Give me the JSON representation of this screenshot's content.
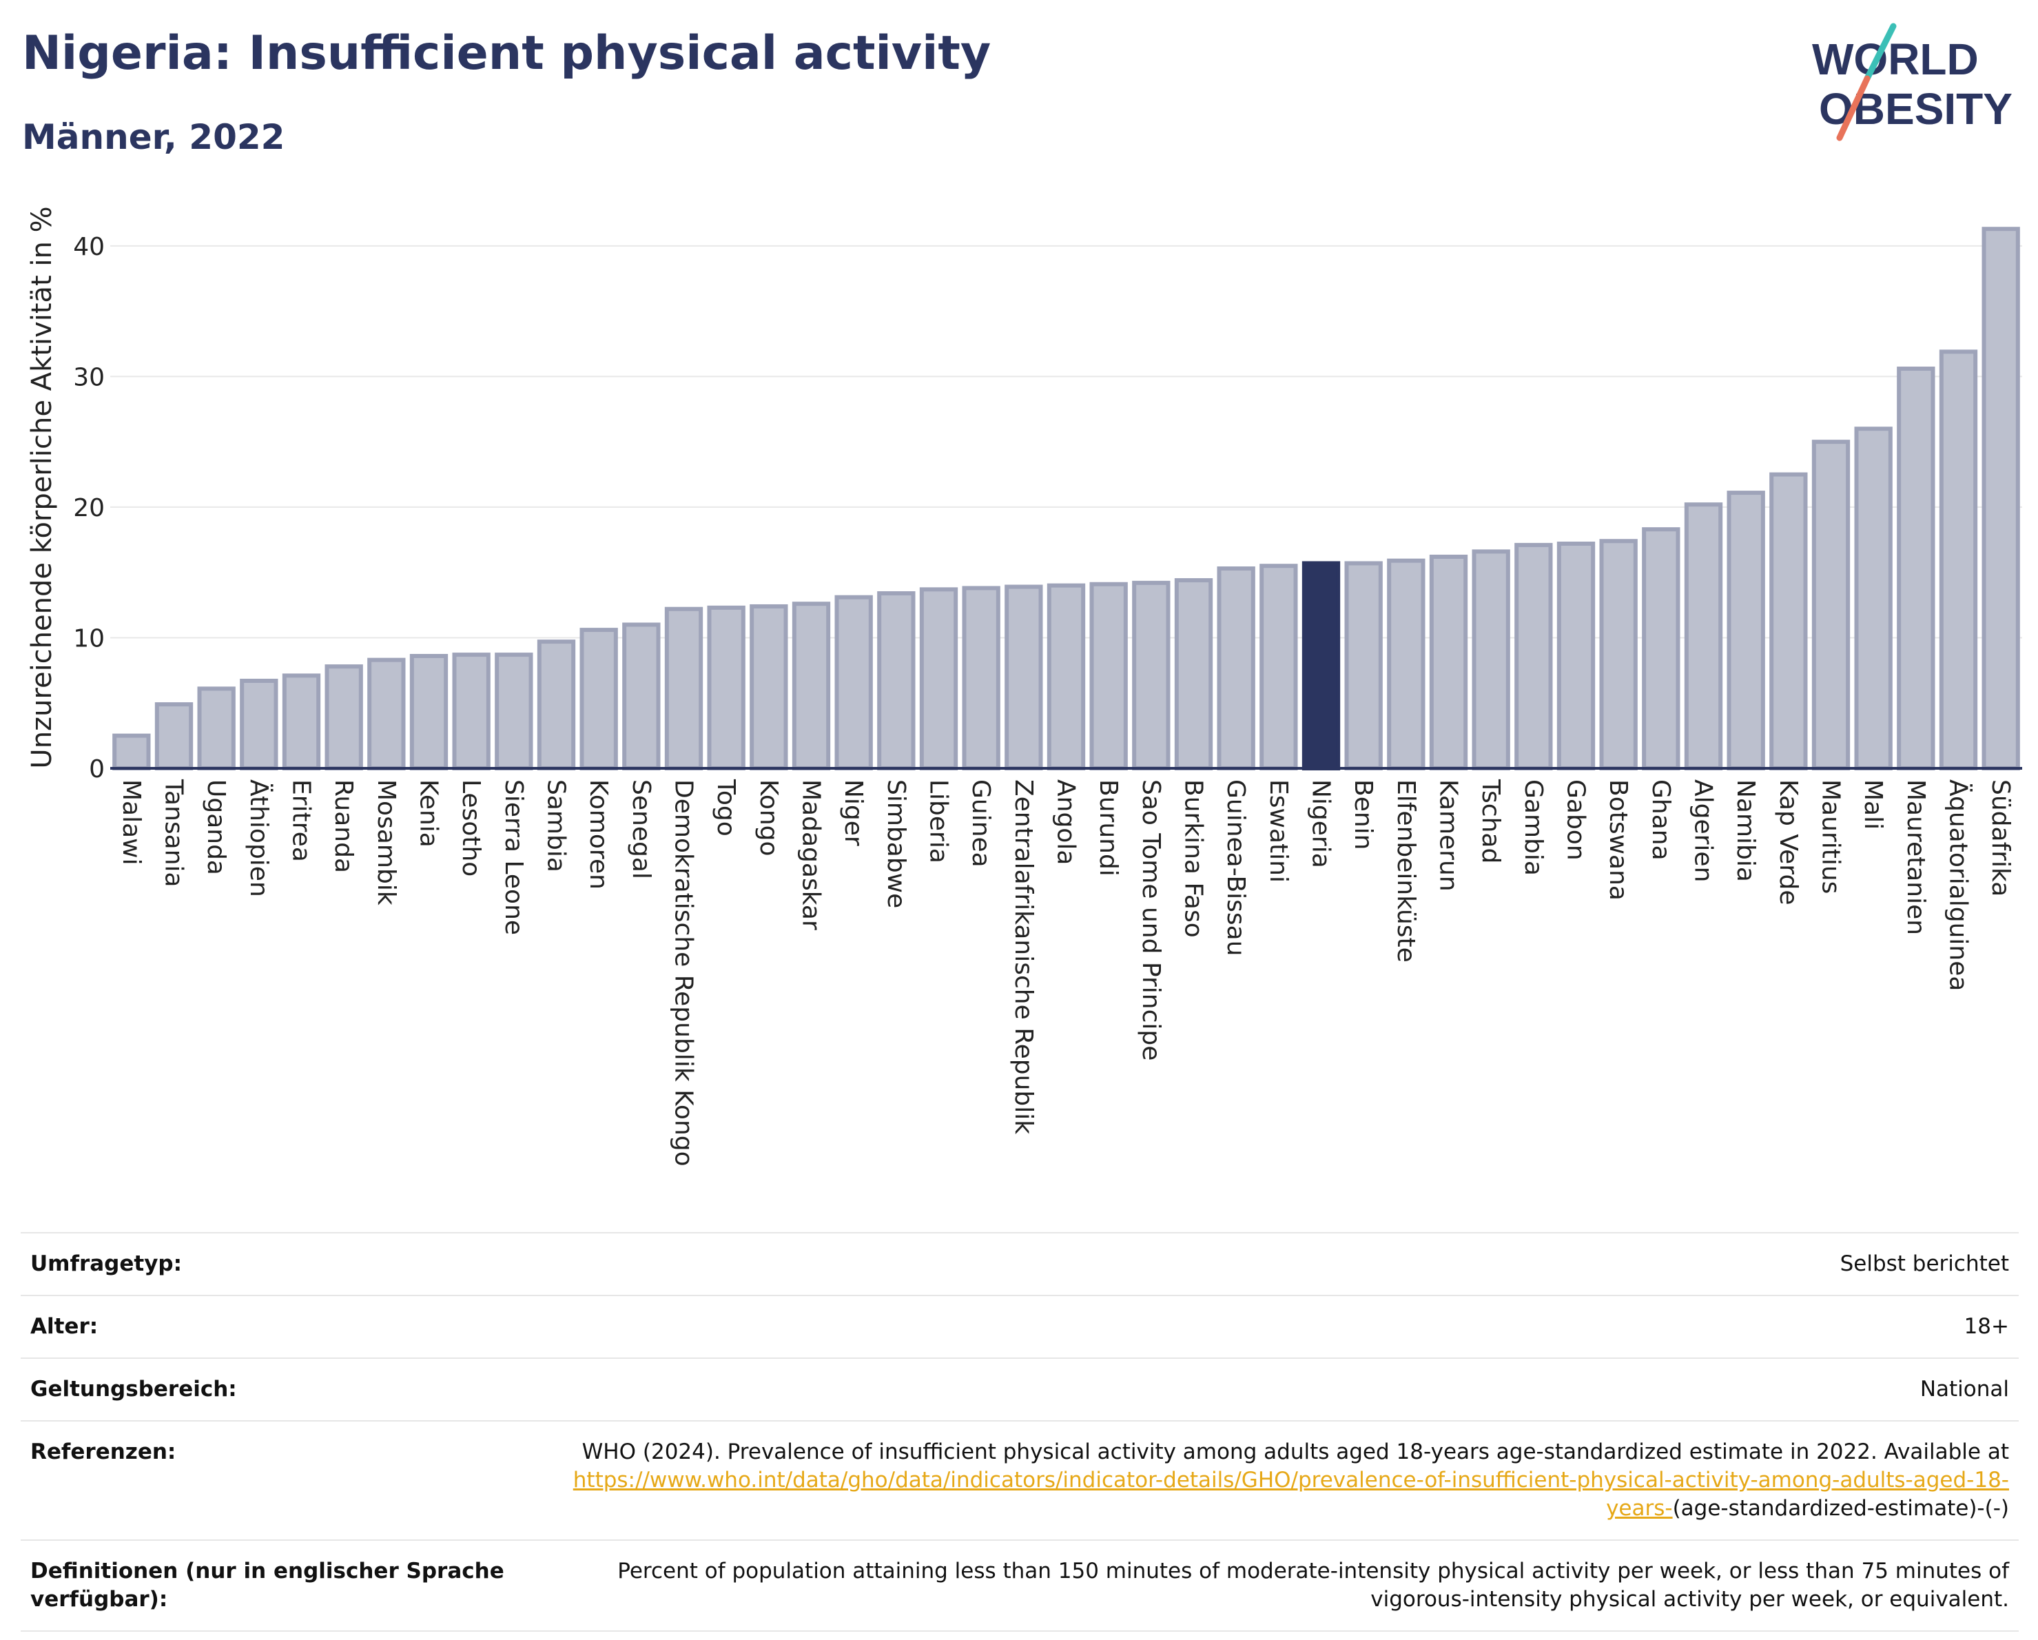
{
  "header": {
    "title": "Nigeria: Insufficient physical activity",
    "subtitle": "Männer, 2022",
    "logo_line1": "WORLD",
    "logo_line2": "OBESITY"
  },
  "colors": {
    "bar": "#bcc0ce",
    "bar_border": "#9ea3b9",
    "highlight": "#2b3560",
    "text": "#2b3560",
    "link": "#e6a817",
    "logo_teal": "#3bbfb6",
    "logo_coral": "#e8735a"
  },
  "chart_data": {
    "type": "bar",
    "ylabel": "Unzureichende körperliche Aktivität in %",
    "xlabel": "",
    "ylim": [
      0,
      43
    ],
    "yticks": [
      0,
      10,
      20,
      30,
      40
    ],
    "grid": true,
    "highlight": "Nigeria",
    "categories": [
      "Malawi",
      "Tansania",
      "Uganda",
      "Äthiopien",
      "Eritrea",
      "Ruanda",
      "Mosambik",
      "Kenia",
      "Lesotho",
      "Sierra Leone",
      "Sambia",
      "Komoren",
      "Senegal",
      "Demokratische Republik Kongo",
      "Togo",
      "Kongo",
      "Madagaskar",
      "Niger",
      "Simbabwe",
      "Liberia",
      "Guinea",
      "Zentralafrikanische Republik",
      "Angola",
      "Burundi",
      "Sao Tome und Principe",
      "Burkina Faso",
      "Guinea-Bissau",
      "Eswatini",
      "Nigeria",
      "Benin",
      "Elfenbeinküste",
      "Kamerun",
      "Tschad",
      "Gambia",
      "Gabon",
      "Botswana",
      "Ghana",
      "Algerien",
      "Namibia",
      "Kap Verde",
      "Mauritius",
      "Mali",
      "Mauretanien",
      "Äquatorialguinea",
      "Südafrika"
    ],
    "values": [
      2.5,
      4.9,
      6.1,
      6.7,
      7.1,
      7.8,
      8.3,
      8.6,
      8.7,
      8.7,
      9.7,
      10.6,
      11.0,
      12.2,
      12.3,
      12.4,
      12.6,
      13.1,
      13.4,
      13.7,
      13.8,
      13.9,
      14.0,
      14.1,
      14.2,
      14.4,
      15.3,
      15.5,
      15.7,
      15.7,
      15.9,
      16.2,
      16.6,
      17.1,
      17.2,
      17.4,
      18.3,
      20.2,
      21.1,
      22.5,
      25.0,
      26.0,
      30.6,
      31.9,
      41.3
    ]
  },
  "info": {
    "rows": [
      {
        "label": "Umfragetyp:",
        "value": "Selbst berichtet"
      },
      {
        "label": "Alter:",
        "value": "18+"
      },
      {
        "label": "Geltungsbereich:",
        "value": "National"
      },
      {
        "label": "Referenzen:",
        "value": "WHO (2024). Prevalence of insufficient physical activity among adults aged 18-years age-standardized estimate in 2022. Available at",
        "link": "https://www.who.int/data/gho/data/indicators/indicator-details/GHO/prevalence-of-insufficient-physical-activity-among-adults-aged-18-years-",
        "suffix": "(age-standardized-estimate)-(-)"
      },
      {
        "label": "Definitionen (nur in englischer Sprache verfügbar):",
        "value": "Percent of population attaining less than 150 minutes of moderate-intensity physical activity per week, or less than 75 minutes of vigorous-intensity physical activity per week, or equivalent."
      }
    ]
  }
}
